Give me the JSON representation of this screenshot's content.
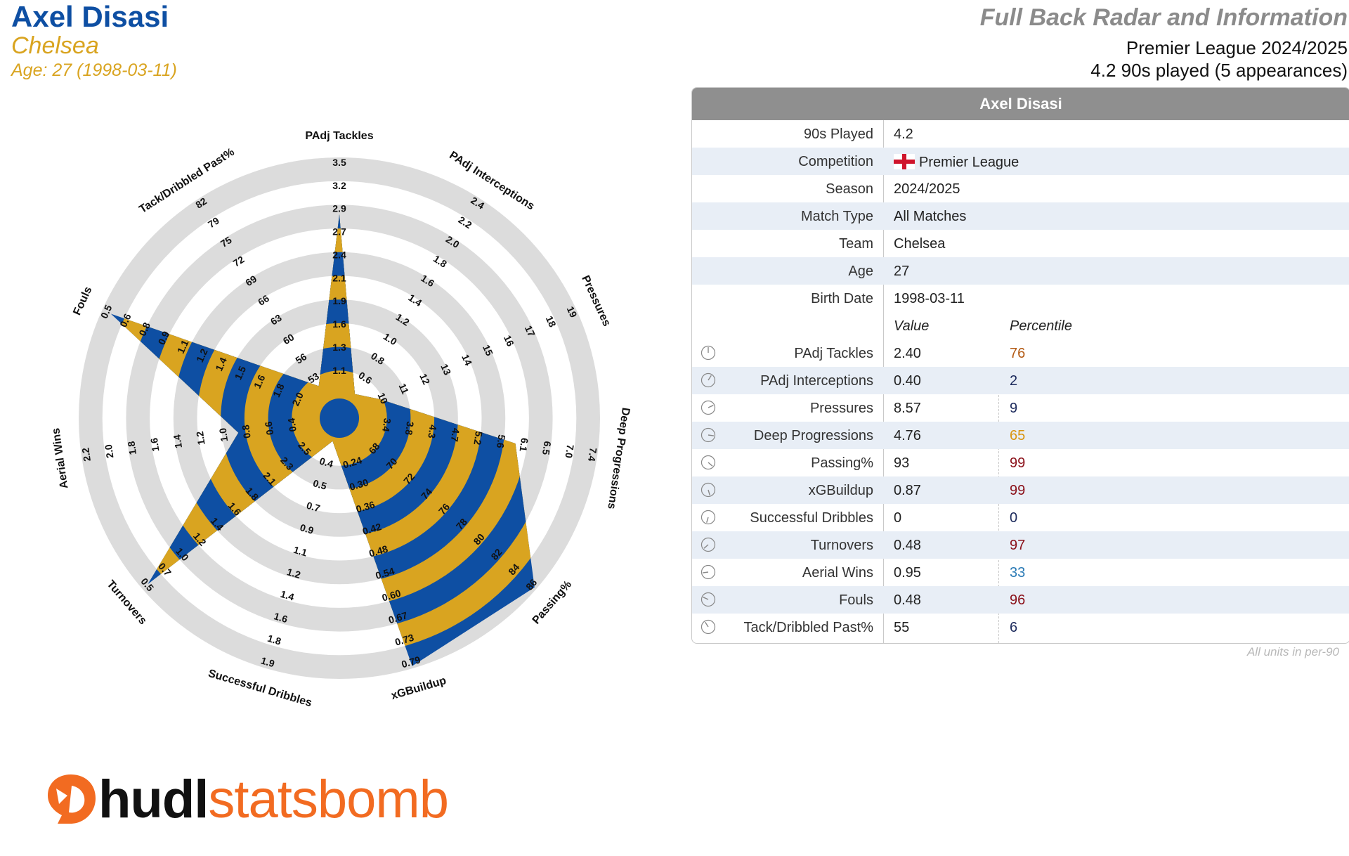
{
  "header": {
    "player": "Axel Disasi",
    "team": "Chelsea",
    "age_line": "Age: 27 (1998-03-11)",
    "title": "Full Back Radar and Information",
    "league_season": "Premier League 2024/2025",
    "played": "4.2 90s played (5 appearances)"
  },
  "colors": {
    "blue": "#0e4fa3",
    "gold": "#d9a420",
    "ring": "#dcdcdc",
    "header_gray": "#8f8f8f"
  },
  "chart_data": {
    "type": "radar",
    "rings": 5,
    "metrics": [
      {
        "name": "PAdj Tackles",
        "ticks": [
          "1.1",
          "1.3",
          "1.6",
          "1.9",
          "2.1",
          "2.4",
          "2.7",
          "2.9",
          "3.2",
          "3.5"
        ],
        "value": 2.4,
        "percentile": 76
      },
      {
        "name": "PAdj Interceptions",
        "ticks": [
          "0.6",
          "0.8",
          "1.0",
          "1.2",
          "1.4",
          "1.6",
          "1.8",
          "2.0",
          "2.2",
          "2.4"
        ],
        "value": 0.4,
        "percentile": 2
      },
      {
        "name": "Pressures",
        "ticks": [
          "10",
          "11",
          "12",
          "13",
          "14",
          "15",
          "16",
          "17",
          "18",
          "19"
        ],
        "value": 8.57,
        "percentile": 9
      },
      {
        "name": "Deep Progressions",
        "ticks": [
          "3.4",
          "3.8",
          "4.3",
          "4.7",
          "5.2",
          "5.6",
          "6.1",
          "6.5",
          "7.0",
          "7.4"
        ],
        "value": 4.76,
        "percentile": 65
      },
      {
        "name": "Passing%",
        "ticks": [
          "68",
          "70",
          "72",
          "74",
          "76",
          "78",
          "80",
          "82",
          "84",
          "86"
        ],
        "value": 93,
        "percentile": 99
      },
      {
        "name": "xGBuildup",
        "ticks": [
          "0.24",
          "0.30",
          "0.36",
          "0.42",
          "0.48",
          "0.54",
          "0.60",
          "0.67",
          "0.73",
          "0.79"
        ],
        "value": 0.87,
        "percentile": 99
      },
      {
        "name": "Successful Dribbles",
        "ticks": [
          "0.4",
          "0.5",
          "0.7",
          "0.9",
          "1.1",
          "1.2",
          "1.4",
          "1.6",
          "1.8",
          "1.9"
        ],
        "value": 0,
        "percentile": 0
      },
      {
        "name": "Turnovers",
        "ticks": [
          "2.5",
          "2.3",
          "2.1",
          "1.8",
          "1.6",
          "1.4",
          "1.2",
          "1.0",
          "0.7",
          "0.5"
        ],
        "value": 0.48,
        "percentile": 97
      },
      {
        "name": "Aerial Wins",
        "ticks": [
          "0.4",
          "0.6",
          "0.8",
          "1.0",
          "1.2",
          "1.4",
          "1.6",
          "1.8",
          "2.0",
          "2.2"
        ],
        "value": 0.95,
        "percentile": 33
      },
      {
        "name": "Fouls",
        "ticks": [
          "2.0",
          "1.8",
          "1.6",
          "1.5",
          "1.4",
          "1.2",
          "1.1",
          "0.9",
          "0.8",
          "0.6",
          "0.5"
        ],
        "value": 0.48,
        "percentile": 96
      },
      {
        "name": "Tack/Dribbled Past%",
        "ticks": [
          "53",
          "56",
          "60",
          "63",
          "66",
          "69",
          "72",
          "75",
          "79",
          "82"
        ],
        "value": 55,
        "percentile": 6
      }
    ]
  },
  "table": {
    "header": "Axel Disasi",
    "info": [
      {
        "label": "90s Played",
        "value": "4.2"
      },
      {
        "label": "Competition",
        "value": "Premier League"
      },
      {
        "label": "Season",
        "value": "2024/2025"
      },
      {
        "label": "Match Type",
        "value": "All Matches"
      },
      {
        "label": "Team",
        "value": "Chelsea"
      },
      {
        "label": "Age",
        "value": "27"
      },
      {
        "label": "Birth Date",
        "value": "1998-03-11"
      }
    ],
    "col_value": "Value",
    "col_percentile": "Percentile",
    "stats": [
      {
        "label": "PAdj Tackles",
        "value": "2.40",
        "pct": "76",
        "color": "#b35a14"
      },
      {
        "label": "PAdj Interceptions",
        "value": "0.40",
        "pct": "2",
        "color": "#1c2a5c"
      },
      {
        "label": "Pressures",
        "value": "8.57",
        "pct": "9",
        "color": "#1c2a5c"
      },
      {
        "label": "Deep Progressions",
        "value": "4.76",
        "pct": "65",
        "color": "#d9950f"
      },
      {
        "label": "Passing%",
        "value": "93",
        "pct": "99",
        "color": "#8a0f18"
      },
      {
        "label": "xGBuildup",
        "value": "0.87",
        "pct": "99",
        "color": "#8a0f18"
      },
      {
        "label": "Successful Dribbles",
        "value": "0",
        "pct": "0",
        "color": "#1c2a5c"
      },
      {
        "label": "Turnovers",
        "value": "0.48",
        "pct": "97",
        "color": "#8a0f18"
      },
      {
        "label": "Aerial Wins",
        "value": "0.95",
        "pct": "33",
        "color": "#2a7ab5"
      },
      {
        "label": "Fouls",
        "value": "0.48",
        "pct": "96",
        "color": "#8a0f18"
      },
      {
        "label": "Tack/Dribbled Past%",
        "value": "55",
        "pct": "6",
        "color": "#1c2a5c"
      }
    ],
    "note": "All units in per-90"
  },
  "logo": {
    "part1": "hudl",
    "part2": "statsbomb"
  }
}
